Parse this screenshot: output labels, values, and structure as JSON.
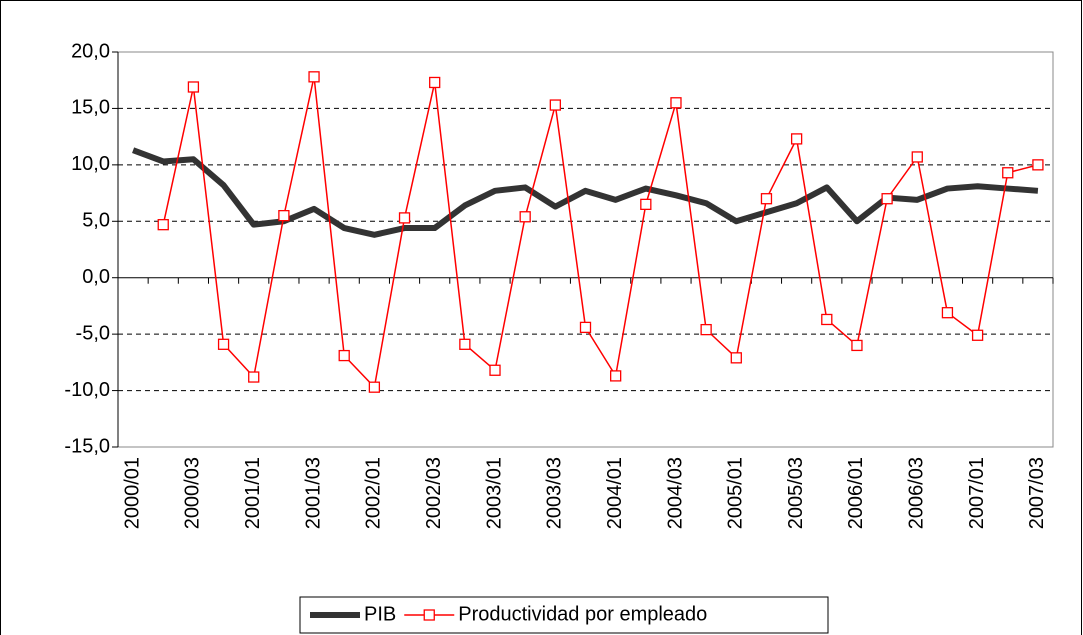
{
  "chart_data": {
    "type": "line",
    "categories": [
      "2000/01",
      null,
      "2000/03",
      null,
      "2001/01",
      null,
      "2001/03",
      null,
      "2002/01",
      null,
      "2002/03",
      null,
      "2003/01",
      null,
      "2003/03",
      null,
      "2004/01",
      null,
      "2004/03",
      null,
      "2005/01",
      null,
      "2005/03",
      null,
      "2006/01",
      null,
      "2006/03",
      null,
      "2007/01",
      null,
      "2007/03"
    ],
    "series": [
      {
        "name": "PIB",
        "color": "#333333",
        "values": [
          11.3,
          10.3,
          10.5,
          8.2,
          4.7,
          5.0,
          6.1,
          4.4,
          3.8,
          4.4,
          4.4,
          6.4,
          7.7,
          8.0,
          6.3,
          7.7,
          6.9,
          7.9,
          7.3,
          6.6,
          5.0,
          5.8,
          6.6,
          8.0,
          5.0,
          7.1,
          6.9,
          7.9,
          8.1,
          7.9,
          7.7
        ]
      },
      {
        "name": "Productividad por empleado",
        "color": "#ff0000",
        "marker": "square",
        "values": [
          null,
          4.7,
          16.9,
          -5.9,
          -8.8,
          5.5,
          17.8,
          -6.9,
          -9.7,
          5.3,
          17.3,
          -5.9,
          -8.2,
          5.4,
          15.3,
          -4.4,
          -8.7,
          6.5,
          15.5,
          -4.6,
          -7.1,
          7.0,
          12.3,
          -3.7,
          -6.0,
          7.0,
          10.7,
          -3.1,
          -5.1,
          9.3,
          10.0
        ]
      }
    ],
    "ylim": [
      -15,
      20
    ],
    "yticks": [
      {
        "value": -15,
        "label": "-15,0"
      },
      {
        "value": -10,
        "label": "-10,0"
      },
      {
        "value": -5,
        "label": "-5,0"
      },
      {
        "value": 0,
        "label": "0,0"
      },
      {
        "value": 5,
        "label": "5,0"
      },
      {
        "value": 10,
        "label": "10,0"
      },
      {
        "value": 15,
        "label": "15,0"
      },
      {
        "value": 20,
        "label": "20,0"
      }
    ],
    "grid": true,
    "legend": "bottom"
  }
}
